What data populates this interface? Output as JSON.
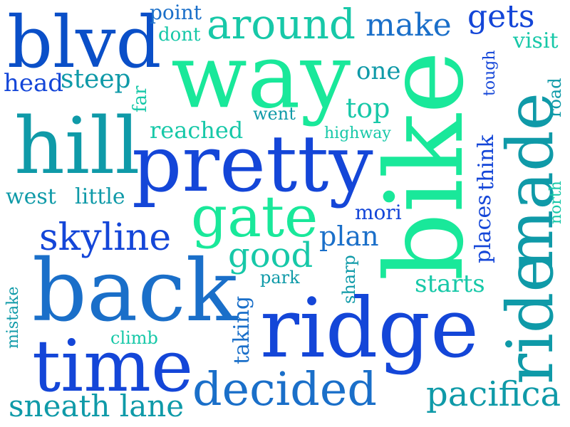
{
  "colors": {
    "background": "#ffffff",
    "royal_blue": "#1446d8",
    "deep_blue": "#0a4fc8",
    "ocean_blue": "#1a6fc9",
    "teal": "#0f9aa8",
    "aqua": "#17c8a8",
    "mint": "#19e89a"
  },
  "words": {
    "blvd": "blvd",
    "way": "way",
    "bike": "bike",
    "made": "made",
    "ride": "ride",
    "hill": "hill",
    "pretty": "pretty",
    "gate": "gate",
    "back": "back",
    "ridge": "ridge",
    "time": "time",
    "decided": "decided",
    "pacifica": "pacifica",
    "sneath_lane": "sneath lane",
    "skyline": "skyline",
    "good": "good",
    "around": "around",
    "make": "make",
    "gets": "gets",
    "point": "point",
    "dont": "dont",
    "visit": "visit",
    "head": "head",
    "steep": "steep",
    "one": "one",
    "tough": "tough",
    "road": "road",
    "far": "far",
    "went": "went",
    "top": "top",
    "reached": "reached",
    "highway": "highway",
    "think": "think",
    "places": "places",
    "north": "north",
    "west": "west",
    "little": "little",
    "mori": "mori",
    "plan": "plan",
    "park": "park",
    "sharp": "sharp",
    "starts": "starts",
    "mistake": "mistake",
    "climb": "climb",
    "taking": "taking"
  }
}
